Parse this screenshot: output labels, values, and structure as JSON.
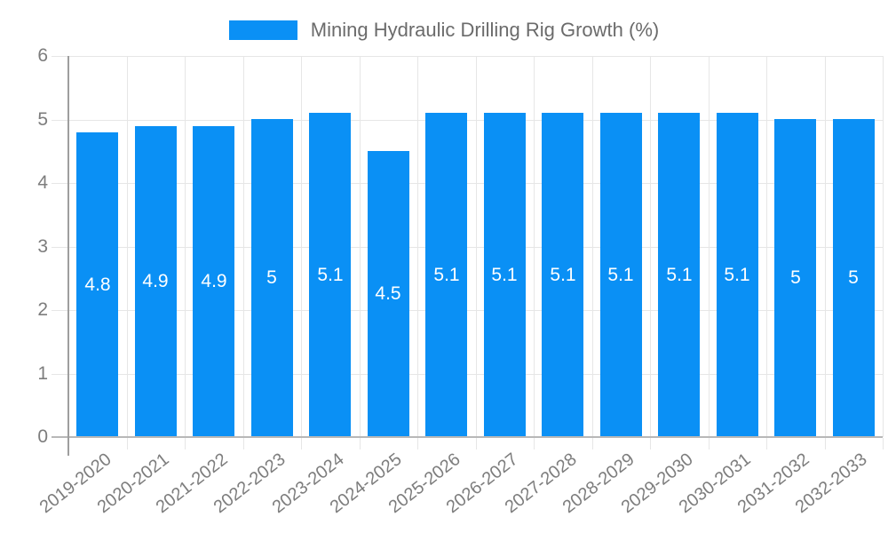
{
  "legend": {
    "series_label": "Mining Hydraulic Drilling Rig Growth (%)"
  },
  "chart_data": {
    "type": "bar",
    "title": "Mining Hydraulic Drilling Rig Growth (%)",
    "categories": [
      "2019-2020",
      "2020-2021",
      "2021-2022",
      "2022-2023",
      "2023-2024",
      "2024-2025",
      "2025-2026",
      "2026-2027",
      "2027-2028",
      "2028-2029",
      "2029-2030",
      "2030-2031",
      "2031-2032",
      "2032-2033"
    ],
    "values": [
      4.8,
      4.9,
      4.9,
      5,
      5.1,
      4.5,
      5.1,
      5.1,
      5.1,
      5.1,
      5.1,
      5.1,
      5,
      5
    ],
    "xlabel": "",
    "ylabel": "",
    "ylim": [
      0,
      6
    ],
    "yticks": [
      0,
      1,
      2,
      3,
      4,
      5,
      6
    ],
    "grid": true,
    "legend_position": "top",
    "value_labels_inside_bars": true,
    "colors": {
      "bar": "#0a90f5",
      "grid": "#e6e6e6",
      "y_axis": "#9e9e9e",
      "x_axis": "#b8b8b8",
      "tick_label": "#7d7d7d",
      "legend_text": "#6b6b6b",
      "bar_value_text": "#ffffff"
    }
  }
}
